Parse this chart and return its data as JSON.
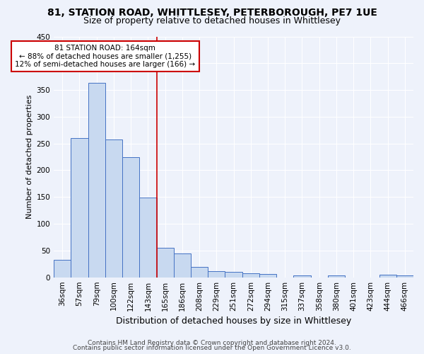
{
  "title1": "81, STATION ROAD, WHITTLESEY, PETERBOROUGH, PE7 1UE",
  "title2": "Size of property relative to detached houses in Whittlesey",
  "xlabel": "Distribution of detached houses by size in Whittlesey",
  "ylabel": "Number of detached properties",
  "bar_labels": [
    "36sqm",
    "57sqm",
    "79sqm",
    "100sqm",
    "122sqm",
    "143sqm",
    "165sqm",
    "186sqm",
    "208sqm",
    "229sqm",
    "251sqm",
    "272sqm",
    "294sqm",
    "315sqm",
    "337sqm",
    "358sqm",
    "380sqm",
    "401sqm",
    "423sqm",
    "444sqm",
    "466sqm"
  ],
  "bar_values": [
    32,
    260,
    363,
    257,
    225,
    149,
    55,
    44,
    19,
    11,
    10,
    8,
    6,
    0,
    4,
    0,
    3,
    0,
    0,
    5,
    3
  ],
  "bar_color": "#c8d9f0",
  "bar_edge_color": "#4472c4",
  "background_color": "#eef2fb",
  "grid_color": "#ffffff",
  "red_line_index": 6,
  "annotation_title": "81 STATION ROAD: 164sqm",
  "annotation_line1": "← 88% of detached houses are smaller (1,255)",
  "annotation_line2": "12% of semi-detached houses are larger (166) →",
  "annotation_box_color": "#ffffff",
  "annotation_border_color": "#cc0000",
  "red_line_color": "#cc0000",
  "footer1": "Contains HM Land Registry data © Crown copyright and database right 2024.",
  "footer2": "Contains public sector information licensed under the Open Government Licence v3.0.",
  "ylim": [
    0,
    450
  ],
  "yticks": [
    0,
    50,
    100,
    150,
    200,
    250,
    300,
    350,
    400,
    450
  ],
  "title1_fontsize": 10,
  "title2_fontsize": 9,
  "xlabel_fontsize": 9,
  "ylabel_fontsize": 8,
  "tick_fontsize": 7.5,
  "annotation_fontsize": 7.5,
  "footer_fontsize": 6.5
}
